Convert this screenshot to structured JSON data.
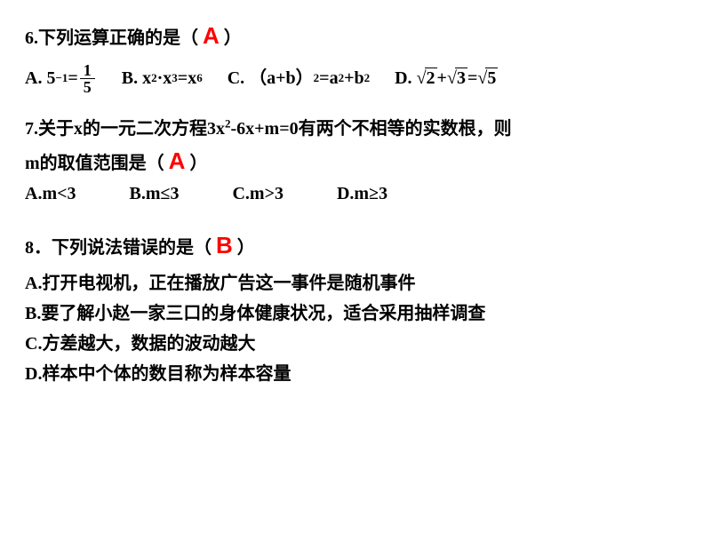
{
  "q6": {
    "stem_pre": "6.下列运算正确的是（",
    "stem_post": "）",
    "answer": "A",
    "optA_label": "A.",
    "optA_lhs": "5",
    "optA_exp": "−1",
    "optA_eq": " = ",
    "optA_num": "1",
    "optA_den": "5",
    "optB": "B. x",
    "optB_e1": "2",
    "optB_mid": " ·x",
    "optB_e2": "3",
    "optB_eq": "=x",
    "optB_e3": "6",
    "optC": "C. （a+b）",
    "optC_e1": "2",
    "optC_mid": "=a",
    "optC_e2": "2",
    "optC_mid2": "+b",
    "optC_e3": "2",
    "optD_label": "D.",
    "optD_r1": "2",
    "optD_plus": " + ",
    "optD_r2": "3",
    "optD_eq": " = ",
    "optD_r3": "5"
  },
  "q7": {
    "line1_pre": "7.关于x的一元二次方程3x",
    "line1_e1": "2",
    "line1_mid": "-6x+m=0有两个不相等的实数根，则",
    "line2_pre": "m的取值范围是（",
    "line2_post": "）",
    "answer": "A",
    "optA": "A.m<3",
    "optB": "B.m≤3",
    "optC": "C.m>3",
    "optD": "D.m≥3"
  },
  "q8": {
    "stem_pre": "8．下列说法错误的是（",
    "stem_post": "）",
    "answer": "B",
    "optA": "A.打开电视机，正在播放广告这一事件是随机事件",
    "optB": "B.要了解小赵一家三口的身体健康状况，适合采用抽样调查",
    "optC": "C.方差越大，数据的波动越大",
    "optD": "D.样本中个体的数目称为样本容量"
  },
  "colors": {
    "text": "#000000",
    "answer": "#ff0000",
    "background": "#ffffff"
  }
}
